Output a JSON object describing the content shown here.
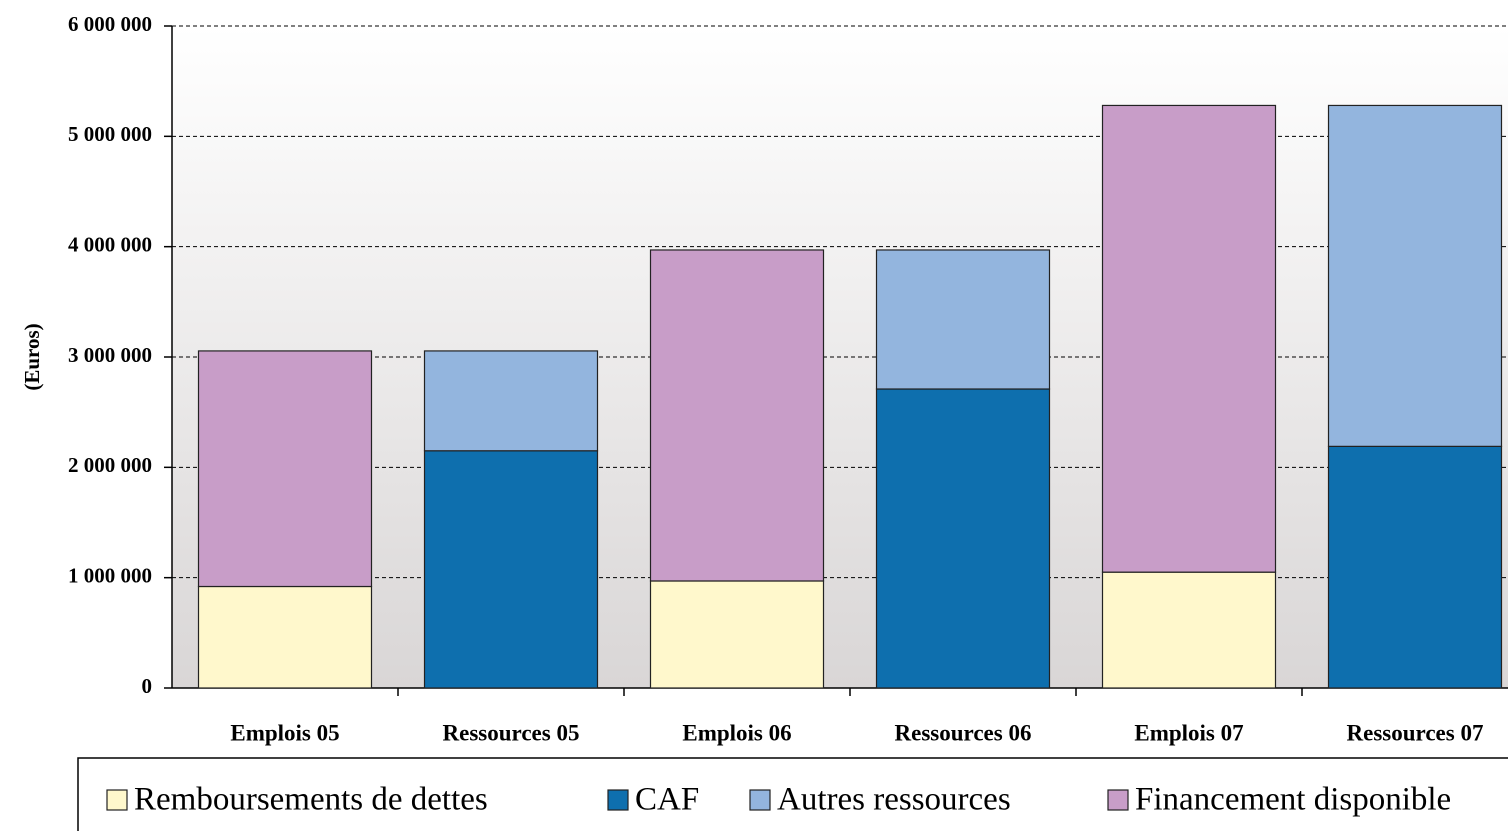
{
  "chart_data": {
    "type": "stacked_bar",
    "y_label": "(Euros)",
    "categories": [
      "Emplois 05",
      "Ressources 05",
      "Emplois 06",
      "Ressources 06",
      "Emplois 07",
      "Ressources 07"
    ],
    "series": [
      {
        "name": "Remboursements de dettes",
        "color": "#fff8cc",
        "values": [
          920000,
          null,
          970000,
          null,
          1050000,
          null
        ]
      },
      {
        "name": "CAF",
        "color": "#0e6fae",
        "values": [
          null,
          2150000,
          null,
          2710000,
          null,
          2190000
        ]
      },
      {
        "name": "Autres ressources",
        "color": "#93b5de",
        "values": [
          null,
          905000,
          null,
          1260000,
          null,
          3090000
        ]
      },
      {
        "name": "Financement disponible",
        "color": "#c89dc8",
        "values": [
          2135000,
          null,
          3000000,
          null,
          4230000,
          null
        ]
      }
    ],
    "ylim": [
      0,
      6000000
    ],
    "yticks": [
      0,
      {
        "value": 1000000,
        "label": "1 000 000"
      },
      {
        "value": 2000000,
        "label": "2 000 000"
      },
      {
        "value": 3000000,
        "label": "3 000 000"
      },
      {
        "value": 4000000,
        "label": "4 000 000"
      },
      {
        "value": 5000000,
        "label": "5 000 000"
      },
      {
        "value": 6000000,
        "label": "6 000 000"
      }
    ],
    "grid": true
  }
}
